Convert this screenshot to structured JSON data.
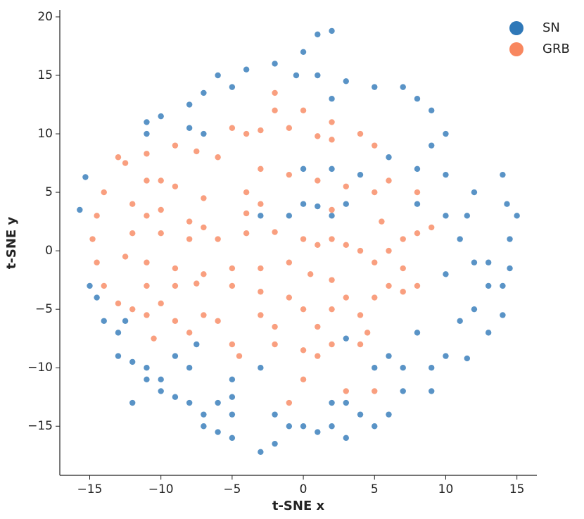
{
  "chart_data": {
    "type": "scatter",
    "xlabel": "t-SNE x",
    "ylabel": "t-SNE y",
    "xlim": [
      -17.1,
      16.4
    ],
    "ylim": [
      -19.2,
      20.6
    ],
    "xticks": [
      {
        "value": -15,
        "label": "−15"
      },
      {
        "value": -10,
        "label": "−10"
      },
      {
        "value": -5,
        "label": "−5"
      },
      0,
      5,
      10,
      15
    ],
    "yticks": [
      {
        "value": -15,
        "label": "−15"
      },
      {
        "value": -10,
        "label": "−10"
      },
      {
        "value": -5,
        "label": "−5"
      },
      0,
      5,
      10,
      15,
      20
    ],
    "grid": false,
    "legend": "upper right",
    "series": [
      {
        "name": "SN",
        "color": "#2f78b8",
        "x": [
          -15.7,
          -15.3,
          -15,
          -14.5,
          -14,
          -13,
          -12.5,
          -13,
          -12,
          -11,
          -10,
          -10,
          -9,
          -8,
          -6,
          -5,
          -7,
          -6,
          -5,
          -5,
          -3,
          -2,
          -1,
          -2,
          0,
          1,
          2,
          3,
          2,
          3,
          4,
          5,
          6,
          7,
          9,
          9,
          10,
          11,
          12,
          13,
          14,
          14,
          13,
          13,
          14.5,
          14.5,
          14.3,
          15,
          14,
          12,
          11.5,
          11,
          12,
          10,
          10,
          10,
          8,
          8,
          9,
          10,
          9,
          8,
          7,
          5,
          3,
          2,
          1,
          0,
          1,
          2,
          -0.5,
          -2,
          -4,
          -5,
          -6,
          -7,
          -8,
          -10,
          -11,
          -11,
          -8,
          -7,
          0,
          1,
          2,
          3,
          -1,
          -3,
          4,
          6,
          0,
          2,
          -7.5,
          -8,
          -5,
          -3,
          6,
          8,
          7,
          -9,
          -12,
          -7,
          5,
          3,
          -11,
          11.5
        ],
        "y": [
          3.5,
          6.3,
          -3,
          -4,
          -6,
          -7,
          -6,
          -9,
          -9.5,
          -10,
          -11,
          -12,
          -12.5,
          -13,
          -13,
          -12.5,
          -15,
          -15.5,
          -14,
          -16,
          -17.2,
          -16.5,
          -15,
          -14,
          -15,
          -15.5,
          -15,
          -16,
          -13,
          -13,
          -14,
          -15,
          -14,
          -12,
          -12,
          -10,
          -9,
          -6,
          -5,
          -3,
          -3,
          -5.5,
          -7,
          -1,
          -1.5,
          1,
          4,
          3,
          6.5,
          5,
          3,
          1,
          -1,
          -2,
          3,
          6.5,
          4,
          7,
          9,
          10,
          12,
          13,
          14,
          14,
          14.5,
          13,
          15,
          17,
          18.5,
          18.8,
          15,
          16,
          15.5,
          14,
          15,
          13.5,
          12.5,
          11.5,
          10,
          11,
          10.5,
          10,
          4,
          3.8,
          3,
          4,
          3,
          3,
          6.5,
          8,
          7,
          7,
          -8,
          -10,
          -11,
          -10,
          -9,
          -7,
          -10,
          -9,
          -13,
          -14,
          -10,
          -7.5,
          -11,
          -9.2
        ]
      },
      {
        "name": "GRB",
        "color": "#f8875f",
        "x": [
          -13,
          -12.5,
          -14,
          -14.5,
          -14.8,
          -14.5,
          -14,
          -13,
          -12,
          -11,
          -10,
          -9,
          -10.5,
          -11,
          -9,
          -7.5,
          -6,
          -11,
          -10,
          -9,
          -7,
          -12,
          -11,
          -8,
          -7,
          -12,
          -10,
          -8,
          -6,
          -4,
          -2,
          0,
          1,
          2,
          3,
          4,
          5,
          -12.5,
          -11,
          -9,
          -7,
          -5,
          -3,
          -1,
          0.5,
          2,
          -11,
          -9,
          -7.5,
          -5,
          -3,
          -1,
          0,
          1,
          2,
          3,
          4,
          5,
          6,
          7,
          8,
          -6,
          -5,
          -4.5,
          -3,
          -2,
          0,
          1,
          2,
          4,
          3,
          5,
          0,
          -1,
          -4,
          -3,
          -1,
          1,
          2,
          4,
          5,
          -5,
          -3,
          -1,
          1,
          3,
          5,
          2,
          -4,
          -3,
          -4,
          -2,
          -2,
          0,
          2,
          6,
          7,
          8,
          9,
          7,
          5.5,
          6,
          8,
          4.5,
          -7,
          -8,
          -2,
          -10
        ],
        "y": [
          8,
          7.5,
          5,
          3,
          1,
          -1,
          -3,
          -4.5,
          -5,
          -5.5,
          -4.5,
          -6,
          -7.5,
          8.3,
          9,
          8.5,
          8,
          6,
          6,
          5.5,
          4.5,
          4,
          3,
          2.5,
          2,
          1.5,
          1.5,
          1,
          1,
          1.5,
          1.6,
          1,
          0.5,
          1,
          0.5,
          0,
          -1,
          -0.5,
          -1,
          -1.5,
          -2,
          -1.5,
          -1.5,
          -1,
          -2,
          -2.5,
          -3,
          -3,
          -2.8,
          -3,
          -3.5,
          -4,
          -5,
          -6.5,
          -5,
          -4,
          -5.5,
          -4,
          -3,
          -3.5,
          -3,
          -6,
          -8,
          -9,
          -5.5,
          -6.5,
          -8.5,
          -9,
          -8,
          -8,
          -12,
          -12,
          -11,
          -13,
          10,
          10.3,
          10.5,
          9.8,
          9.5,
          10,
          9,
          10.5,
          7,
          6.5,
          6,
          5.5,
          5,
          3.5,
          5,
          4,
          3.2,
          13.5,
          12,
          12,
          11,
          0,
          1,
          1.5,
          2,
          -1.5,
          2.5,
          6,
          5,
          -7,
          -5.5,
          -7,
          -8,
          3.5
        ]
      }
    ]
  }
}
